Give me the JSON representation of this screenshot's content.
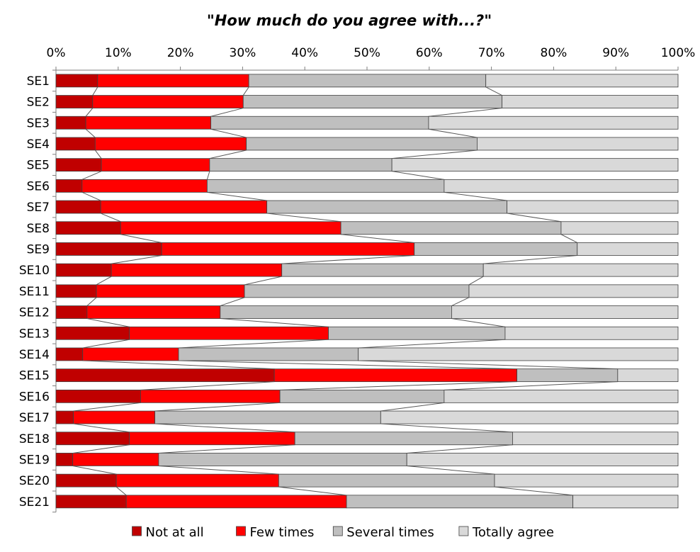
{
  "chart_data": {
    "type": "bar",
    "orientation": "horizontal",
    "stacked": true,
    "percent": true,
    "title": "\"How much do you agree with...?\"",
    "xlim": [
      0,
      100
    ],
    "x_ticks": [
      "0%",
      "10%",
      "20%",
      "30%",
      "40%",
      "50%",
      "60%",
      "70%",
      "80%",
      "90%",
      "100%"
    ],
    "x_axis_position": "top",
    "grid": false,
    "legend_position": "bottom",
    "series_connector_lines": true,
    "categories": [
      "SE1",
      "SE2",
      "SE3",
      "SE4",
      "SE5",
      "SE6",
      "SE7",
      "SE8",
      "SE9",
      "SE10",
      "SE11",
      "SE12",
      "SE13",
      "SE14",
      "SE15",
      "SE16",
      "SE17",
      "SE18",
      "SE19",
      "SE20",
      "SE21"
    ],
    "series": [
      {
        "name": "Not at all",
        "color": "#c00000",
        "values": [
          6.7,
          5.9,
          4.8,
          6.3,
          7.3,
          4.2,
          7.2,
          10.4,
          17.0,
          8.9,
          6.5,
          5.0,
          11.8,
          4.3,
          35.1,
          13.6,
          2.8,
          11.8,
          2.7,
          9.7,
          11.3
        ]
      },
      {
        "name": "Few times",
        "color": "#ff0000",
        "values": [
          24.3,
          24.2,
          20.1,
          24.3,
          17.4,
          20.1,
          26.7,
          35.4,
          40.6,
          27.4,
          23.8,
          21.4,
          32.0,
          15.4,
          39.0,
          22.4,
          13.1,
          26.6,
          13.8,
          26.1,
          35.4
        ]
      },
      {
        "name": "Several times",
        "color": "#bfbfbf",
        "values": [
          38.1,
          41.6,
          35.0,
          37.1,
          29.3,
          38.1,
          38.6,
          35.4,
          26.2,
          32.4,
          36.1,
          37.2,
          28.4,
          28.9,
          16.2,
          26.4,
          36.3,
          35.0,
          39.9,
          34.7,
          36.4
        ]
      },
      {
        "name": "Totally agree",
        "color": "#d9d9d9",
        "values": [
          30.9,
          28.3,
          40.1,
          32.3,
          46.0,
          37.6,
          27.5,
          18.8,
          16.2,
          31.3,
          33.6,
          36.4,
          27.8,
          51.4,
          9.7,
          37.6,
          47.8,
          26.6,
          43.6,
          29.5,
          16.9
        ]
      }
    ]
  }
}
